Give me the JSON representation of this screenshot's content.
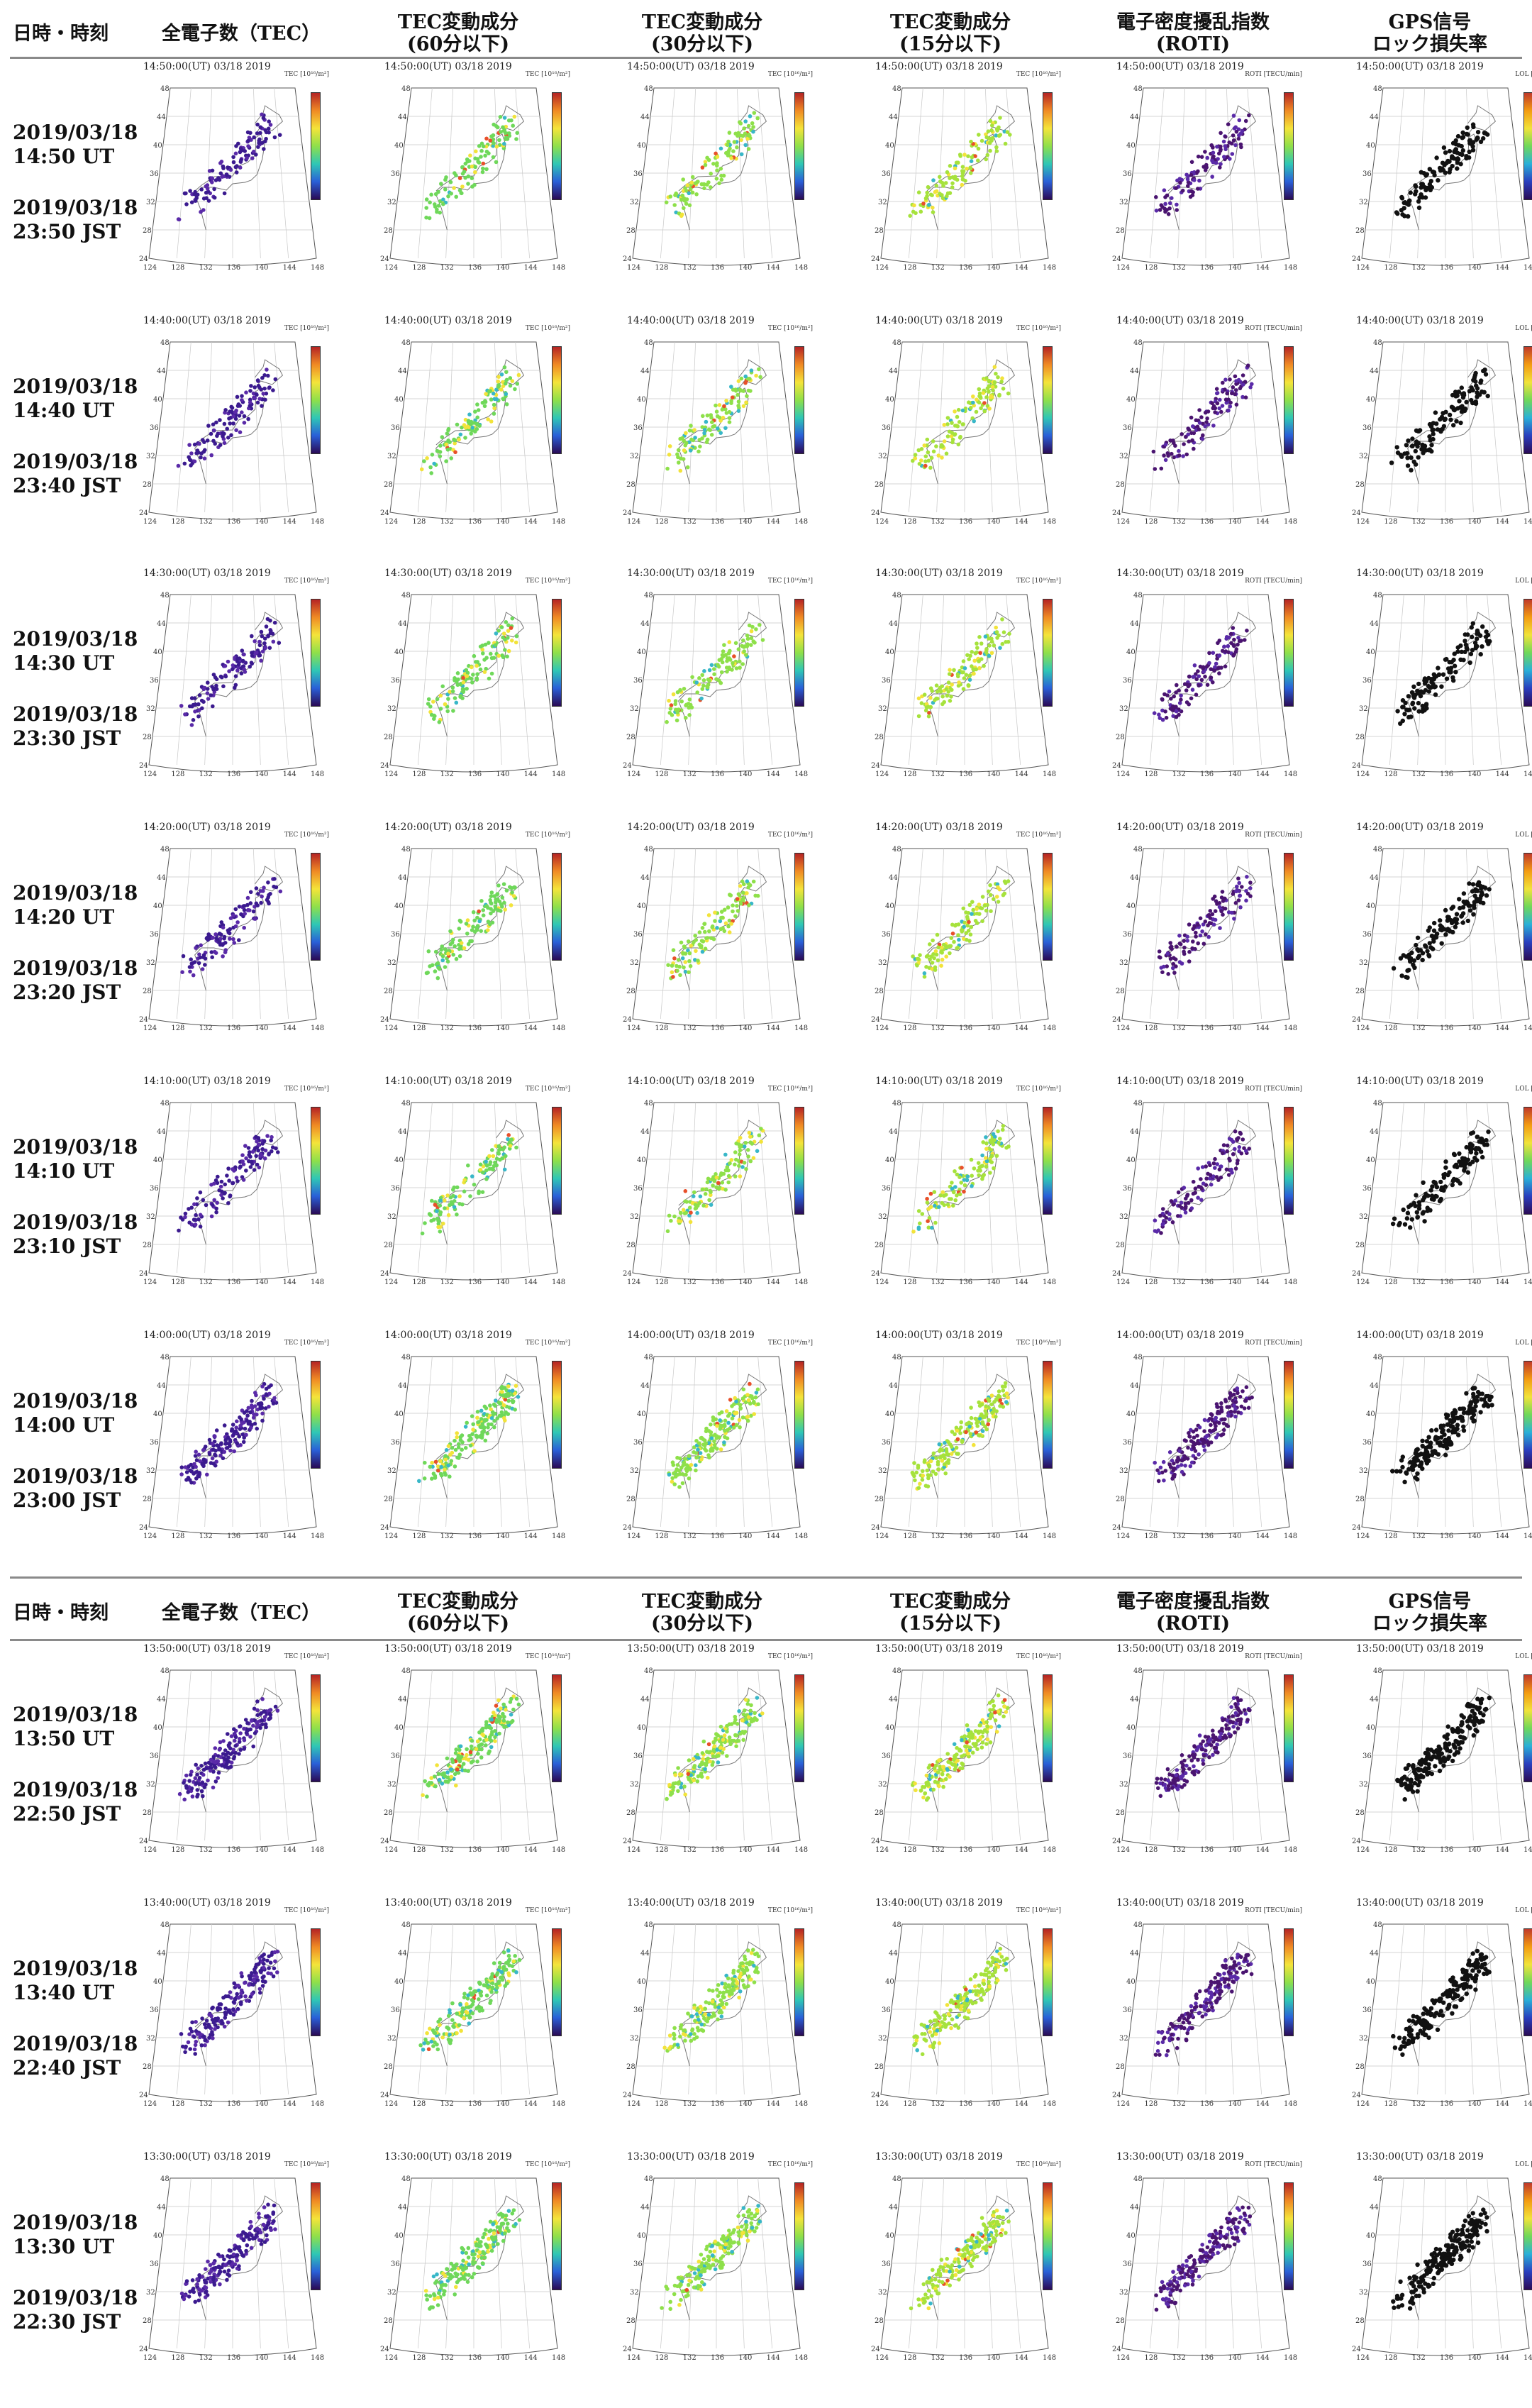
{
  "headers": {
    "datetime": "日時・時刻",
    "tec": "全電子数（TEC）",
    "tec60": [
      "TEC変動成分",
      "(60分以下)"
    ],
    "tec30": [
      "TEC変動成分",
      "(30分以下)"
    ],
    "tec15": [
      "TEC変動成分",
      "(15分以下)"
    ],
    "roti": [
      "電子密度擾乱指数",
      "(ROTI)"
    ],
    "lol": [
      "GPS信号",
      "ロック損失率"
    ]
  },
  "map_labels": {
    "lat_ticks": [
      "48",
      "44",
      "40",
      "36",
      "32",
      "28",
      "24"
    ],
    "lon_ticks": [
      "124",
      "128",
      "132",
      "136",
      "140",
      "144",
      "148"
    ],
    "units": {
      "tec": "TEC [10¹⁶/m²]",
      "tec60": "TEC [10¹⁶/m²]",
      "tec30": "TEC [10¹⁶/m²]",
      "tec15": "TEC [10¹⁶/m²]",
      "roti": "ROTI [TECU/min]",
      "lol": "LOL [%]"
    }
  },
  "colors": {
    "tec": "#3b1a8f",
    "tec60": "#6fd85a",
    "tec30": "#8ee04a",
    "tec15": "#a6e23c",
    "roti": "#4a1470",
    "lol": "#111111"
  },
  "rows": [
    {
      "title": "14:50:00(UT)  03/18 2019",
      "utc": [
        "2019/03/18",
        "14:50 UT"
      ],
      "jst": [
        "2019/03/18",
        "23:50 JST"
      ]
    },
    {
      "title": "14:40:00(UT)  03/18 2019",
      "utc": [
        "2019/03/18",
        "14:40 UT"
      ],
      "jst": [
        "2019/03/18",
        "23:40 JST"
      ]
    },
    {
      "title": "14:30:00(UT)  03/18 2019",
      "utc": [
        "2019/03/18",
        "14:30 UT"
      ],
      "jst": [
        "2019/03/18",
        "23:30 JST"
      ]
    },
    {
      "title": "14:20:00(UT)  03/18 2019",
      "utc": [
        "2019/03/18",
        "14:20 UT"
      ],
      "jst": [
        "2019/03/18",
        "23:20 JST"
      ]
    },
    {
      "title": "14:10:00(UT)  03/18 2019",
      "utc": [
        "2019/03/18",
        "14:10 UT"
      ],
      "jst": [
        "2019/03/18",
        "23:10 JST"
      ]
    },
    {
      "title": "14:00:00(UT)  03/18 2019",
      "utc": [
        "2019/03/18",
        "14:00 UT"
      ],
      "jst": [
        "2019/03/18",
        "23:00 JST"
      ]
    },
    {
      "title": "13:50:00(UT)  03/18 2019",
      "utc": [
        "2019/03/18",
        "13:50 UT"
      ],
      "jst": [
        "2019/03/18",
        "22:50 JST"
      ]
    },
    {
      "title": "13:40:00(UT)  03/18 2019",
      "utc": [
        "2019/03/18",
        "13:40 UT"
      ],
      "jst": [
        "2019/03/18",
        "22:40 JST"
      ]
    },
    {
      "title": "13:30:00(UT)  03/18 2019",
      "utc": [
        "2019/03/18",
        "13:30 UT"
      ],
      "jst": [
        "2019/03/18",
        "22:30 JST"
      ]
    }
  ]
}
